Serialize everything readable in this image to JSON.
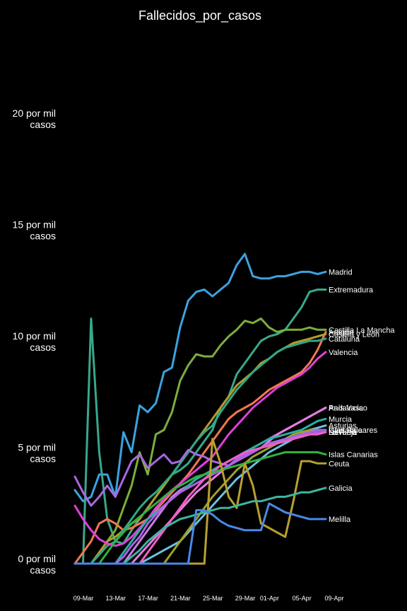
{
  "chart_data": {
    "type": "line",
    "title": "Fallecidos_por_casos",
    "xlabel": "",
    "ylabel": "",
    "ylim": [
      -0.4,
      23.5
    ],
    "grid": false,
    "legend": "labels at line ends",
    "x": [
      "09-Mar",
      "10-Mar",
      "11-Mar",
      "12-Mar",
      "13-Mar",
      "14-Mar",
      "15-Mar",
      "16-Mar",
      "17-Mar",
      "18-Mar",
      "19-Mar",
      "20-Mar",
      "21-Mar",
      "22-Mar",
      "23-Mar",
      "24-Mar",
      "25-Mar",
      "26-Mar",
      "27-Mar",
      "28-Mar",
      "29-Mar",
      "30-Mar",
      "31-Mar",
      "01-Apr",
      "02-Apr",
      "03-Apr",
      "04-Apr",
      "05-Apr",
      "06-Apr",
      "07-Apr",
      "08-Apr",
      "09-Apr"
    ],
    "x_ticks": [
      "09-Mar",
      "13-Mar",
      "17-Mar",
      "21-Mar",
      "25-Mar",
      "29-Mar",
      "01-Apr",
      "05-Apr",
      "09-Apr"
    ],
    "y_ticks": [
      {
        "value": 0,
        "line1": "0 por mil",
        "line2": "casos"
      },
      {
        "value": 5,
        "line1": "5 por mil",
        "line2": "casos"
      },
      {
        "value": 10,
        "line1": "10 por mil",
        "line2": "casos"
      },
      {
        "value": 15,
        "line1": "15 por mil",
        "line2": "casos"
      },
      {
        "value": 20,
        "line1": "20 por mil",
        "line2": "casos"
      }
    ],
    "series": [
      {
        "name": "Madrid",
        "color": "#3ba3e0",
        "values": [
          3.3,
          2.8,
          3.0,
          4.0,
          4.0,
          3.0,
          5.9,
          5.0,
          7.1,
          6.8,
          7.2,
          8.6,
          8.8,
          10.6,
          11.8,
          12.2,
          12.3,
          12.0,
          12.3,
          12.6,
          13.4,
          13.9,
          12.9,
          12.8,
          12.8,
          12.9,
          12.9,
          13.0,
          13.1,
          13.1,
          13.0,
          13.1
        ]
      },
      {
        "name": "Extremadura",
        "color": "#38a88c",
        "values": [
          0,
          0,
          11.0,
          5.0,
          2.0,
          1.0,
          0.9,
          1.5,
          2.0,
          2.5,
          3.0,
          3.5,
          4.0,
          4.2,
          4.5,
          5.0,
          5.5,
          6.0,
          7.0,
          7.5,
          8.5,
          9.0,
          9.5,
          10.0,
          10.2,
          10.3,
          10.5,
          11.0,
          11.5,
          12.2,
          12.3,
          12.3
        ]
      },
      {
        "name": "Castilla La Mancha",
        "color": "#7cae3b",
        "values": [
          0,
          0,
          0,
          0.5,
          1.0,
          1.5,
          2.5,
          3.5,
          5.0,
          4.0,
          5.8,
          6.0,
          6.8,
          8.2,
          8.9,
          9.4,
          9.3,
          9.3,
          9.8,
          10.2,
          10.5,
          10.9,
          10.8,
          11.0,
          10.6,
          10.4,
          10.5,
          10.5,
          10.5,
          10.6,
          10.5,
          10.5
        ]
      },
      {
        "name": "Aragón",
        "color": "#f07850",
        "values": [
          0,
          0.5,
          1.0,
          1.8,
          2.0,
          1.8,
          1.5,
          1.6,
          1.8,
          2.0,
          2.4,
          2.8,
          3.2,
          3.6,
          4.0,
          4.5,
          5.0,
          5.5,
          6.0,
          6.5,
          6.8,
          7.0,
          7.2,
          7.5,
          7.8,
          8.0,
          8.2,
          8.4,
          8.6,
          9.0,
          9.6,
          10.4
        ]
      },
      {
        "name": "Castilla y León",
        "color": "#b59a2e",
        "values": [
          0,
          0,
          0,
          0.5,
          1.0,
          1.2,
          1.5,
          1.8,
          2.0,
          2.5,
          3.0,
          3.5,
          4.0,
          4.5,
          5.0,
          5.5,
          6.0,
          6.5,
          7.0,
          7.5,
          8.0,
          8.3,
          8.6,
          9.0,
          9.2,
          9.5,
          9.7,
          9.9,
          10.0,
          10.1,
          10.2,
          10.3
        ]
      },
      {
        "name": "Cataluña",
        "color": "#2fa888",
        "values": [
          0,
          0,
          0,
          0.4,
          0.8,
          1.0,
          1.5,
          2.0,
          2.5,
          2.9,
          3.2,
          3.6,
          4.0,
          4.5,
          5.0,
          5.5,
          5.9,
          6.2,
          6.8,
          7.3,
          7.8,
          8.2,
          8.6,
          8.9,
          9.2,
          9.5,
          9.7,
          9.8,
          9.9,
          10.0,
          10.0,
          10.1
        ]
      },
      {
        "name": "Valencia",
        "color": "#e040d8",
        "values": [
          2.6,
          2.0,
          1.5,
          1.1,
          0.9,
          0.8,
          0.9,
          1.2,
          1.6,
          2.0,
          2.5,
          2.9,
          3.3,
          3.6,
          3.9,
          4.2,
          4.5,
          4.8,
          5.3,
          5.8,
          6.2,
          6.6,
          7.0,
          7.3,
          7.6,
          7.9,
          8.1,
          8.3,
          8.5,
          8.8,
          9.2,
          9.5
        ]
      },
      {
        "name": "Andalucía",
        "color": "#c87ce8",
        "values": [
          0,
          0,
          0,
          0,
          0,
          0,
          0,
          0.5,
          1.0,
          1.5,
          2.0,
          2.5,
          3.0,
          3.3,
          3.5,
          3.8,
          4.0,
          4.2,
          4.4,
          4.6,
          4.8,
          5.0,
          5.2,
          5.4,
          5.6,
          5.8,
          6.0,
          6.2,
          6.4,
          6.6,
          6.8,
          7.0
        ]
      },
      {
        "name": "País Vasco",
        "color": "#e87ce0",
        "values": [
          0,
          0,
          0,
          0,
          0,
          0,
          0,
          0,
          0.4,
          0.8,
          1.2,
          1.6,
          2.0,
          2.4,
          2.8,
          3.2,
          3.5,
          3.8,
          4.1,
          4.4,
          4.6,
          4.8,
          5.0,
          5.2,
          5.5,
          5.8,
          6.0,
          6.2,
          6.4,
          6.6,
          6.8,
          7.0
        ]
      },
      {
        "name": "Murcia",
        "color": "#28b0a0",
        "values": [
          0,
          0,
          0,
          0,
          0,
          0,
          0.5,
          1.0,
          1.5,
          2.0,
          2.3,
          2.6,
          2.9,
          3.2,
          3.5,
          3.8,
          4.0,
          4.2,
          4.4,
          4.6,
          4.8,
          5.0,
          5.2,
          5.4,
          5.6,
          5.7,
          5.8,
          5.9,
          6.0,
          6.2,
          6.4,
          6.5
        ]
      },
      {
        "name": "Asturias",
        "color": "#6cc0e0",
        "values": [
          0,
          0,
          0,
          0,
          0,
          0,
          0,
          0,
          0,
          0.2,
          0.4,
          0.6,
          0.8,
          1.0,
          1.4,
          1.8,
          2.2,
          2.6,
          3.0,
          3.4,
          3.8,
          4.1,
          4.4,
          4.7,
          5.0,
          5.2,
          5.4,
          5.6,
          5.8,
          6.0,
          6.1,
          6.2
        ]
      },
      {
        "name": "Islas Baleares",
        "color": "#a0a028",
        "values": [
          0,
          0,
          0,
          0,
          0,
          0,
          0,
          0,
          0,
          0,
          0,
          0,
          0.5,
          1.0,
          1.5,
          2.0,
          2.5,
          3.0,
          3.4,
          3.8,
          4.2,
          4.5,
          4.8,
          5.0,
          5.2,
          5.4,
          5.6,
          5.8,
          5.9,
          6.0,
          6.0,
          6.0
        ]
      },
      {
        "name": "Cantabria",
        "color": "#a868e0",
        "values": [
          3.9,
          3.2,
          2.6,
          3.0,
          3.5,
          3.0,
          3.8,
          4.6,
          4.9,
          4.3,
          4.6,
          4.9,
          4.5,
          4.6,
          5.1,
          4.9,
          4.8,
          4.6,
          4.5,
          4.4,
          4.7,
          4.9,
          5.0,
          5.2,
          5.4,
          5.5,
          5.6,
          5.7,
          5.8,
          5.9,
          6.0,
          6.0
        ]
      },
      {
        "name": "La Rioja",
        "color": "#b060e8",
        "values": [
          0,
          0,
          0,
          0,
          0,
          0,
          0.3,
          0.8,
          1.2,
          1.8,
          2.2,
          2.6,
          2.9,
          3.2,
          3.4,
          3.6,
          3.8,
          4.0,
          4.2,
          4.4,
          4.6,
          4.8,
          5.0,
          5.2,
          5.3,
          5.4,
          5.5,
          5.6,
          5.7,
          5.8,
          5.9,
          5.9
        ]
      },
      {
        "name": "Navarra",
        "color": "#f060c8",
        "values": [
          0,
          0,
          0,
          0,
          0,
          0,
          0,
          0,
          0,
          0.5,
          1.0,
          1.5,
          2.0,
          2.5,
          3.0,
          3.4,
          3.8,
          4.1,
          4.4,
          4.6,
          4.8,
          5.0,
          5.1,
          5.2,
          5.3,
          5.4,
          5.5,
          5.6,
          5.7,
          5.8,
          5.8,
          5.9
        ]
      },
      {
        "name": "Islas Canarias",
        "color": "#30b040",
        "values": [
          0,
          0,
          0,
          0,
          0.5,
          1.0,
          1.4,
          1.8,
          2.1,
          2.4,
          2.7,
          3.0,
          3.3,
          3.5,
          3.7,
          3.9,
          4.0,
          4.1,
          4.2,
          4.3,
          4.4,
          4.5,
          4.6,
          4.7,
          4.8,
          4.9,
          5.0,
          5.0,
          5.0,
          5.0,
          5.0,
          4.9
        ]
      },
      {
        "name": "Ceuta",
        "color": "#b8a030",
        "values": [
          0,
          0,
          0,
          0,
          0,
          0,
          0,
          0,
          0,
          0,
          0,
          0,
          0,
          0,
          0,
          0,
          0,
          5.6,
          4.5,
          3.0,
          2.5,
          4.5,
          3.5,
          1.8,
          1.6,
          1.4,
          1.2,
          2.8,
          4.6,
          4.6,
          4.5,
          4.5
        ]
      },
      {
        "name": "Galicia",
        "color": "#3cb4a0",
        "values": [
          0,
          0,
          0,
          0,
          0,
          0,
          0,
          0.3,
          0.6,
          1.0,
          1.3,
          1.6,
          1.8,
          2.0,
          2.1,
          2.2,
          2.3,
          2.4,
          2.5,
          2.5,
          2.6,
          2.7,
          2.8,
          2.8,
          2.9,
          3.0,
          3.0,
          3.1,
          3.2,
          3.2,
          3.3,
          3.4
        ]
      },
      {
        "name": "Melilla",
        "color": "#4a88e8",
        "values": [
          0,
          0,
          0,
          0,
          0,
          0,
          0,
          0,
          0,
          0,
          0,
          0,
          0,
          0,
          0,
          2.4,
          2.4,
          2.2,
          1.9,
          1.7,
          1.6,
          1.5,
          1.5,
          1.5,
          2.7,
          2.5,
          2.3,
          2.2,
          2.1,
          2.0,
          2.0,
          2.0
        ]
      }
    ],
    "end_labels": [
      {
        "series": "Madrid"
      },
      {
        "series": "Extremadura"
      },
      {
        "series": "Castilla La Mancha"
      },
      {
        "series": "Aragón"
      },
      {
        "series": "Castilla y León"
      },
      {
        "series": "Cataluña"
      },
      {
        "series": "Valencia"
      },
      {
        "series": "Andalucía"
      },
      {
        "series": "País Vasco"
      },
      {
        "series": "Murcia"
      },
      {
        "series": "Asturias"
      },
      {
        "series": "Islas Baleares"
      },
      {
        "series": "Cantabria"
      },
      {
        "series": "La Rioja"
      },
      {
        "series": "Navarra"
      },
      {
        "series": "Islas Canarias"
      },
      {
        "series": "Ceuta"
      },
      {
        "series": "Galicia"
      },
      {
        "series": "Melilla"
      }
    ]
  }
}
